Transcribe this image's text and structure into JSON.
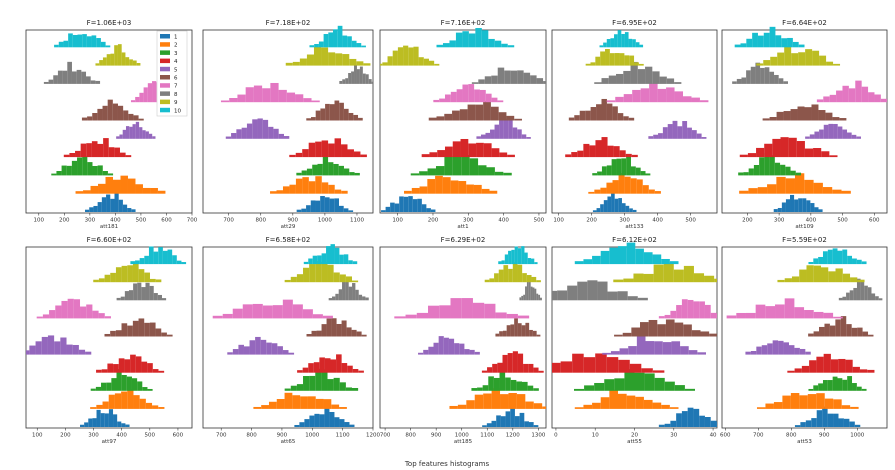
{
  "figure": {
    "suptitle": "Top features histograms",
    "legend": {
      "placement": "inside top-right of first panel",
      "entries": [
        "1",
        "2",
        "3",
        "4",
        "5",
        "6",
        "7",
        "8",
        "9",
        "10"
      ]
    },
    "class_colors": [
      "#1f77b4",
      "#ff7f0e",
      "#2ca02c",
      "#d62728",
      "#9467bd",
      "#8c564b",
      "#e377c2",
      "#7f7f7f",
      "#bcbd22",
      "#17becf"
    ]
  },
  "chart_data": [
    {
      "type": "histogram",
      "title": "F=1.06E+03",
      "xlabel": "att181",
      "xlim": [
        50,
        700
      ],
      "ticks": [
        100,
        200,
        300,
        400,
        500,
        600,
        700
      ],
      "class_centers": [
        380,
        420,
        270,
        330,
        480,
        390,
        560,
        230,
        410,
        270
      ],
      "class_spreads": [
        45,
        80,
        55,
        60,
        35,
        55,
        45,
        50,
        40,
        50
      ]
    },
    {
      "type": "histogram",
      "title": "F=7.18E+02",
      "xlabel": "att29",
      "xlim": [
        620,
        1150
      ],
      "ticks": [
        700,
        800,
        900,
        1000,
        1100
      ],
      "class_centers": [
        1000,
        950,
        1010,
        1010,
        790,
        1030,
        830,
        1100,
        1010,
        1040
      ],
      "class_spreads": [
        40,
        55,
        45,
        55,
        45,
        40,
        70,
        25,
        60,
        40
      ]
    },
    {
      "type": "histogram",
      "title": "F=7.16E+02",
      "xlabel": "att1",
      "xlim": [
        50,
        520
      ],
      "ticks": [
        100,
        200,
        300,
        400,
        500
      ],
      "class_centers": [
        130,
        250,
        280,
        300,
        400,
        320,
        300,
        420,
        130,
        320
      ],
      "class_spreads": [
        35,
        60,
        65,
        60,
        35,
        60,
        45,
        50,
        40,
        50
      ]
    },
    {
      "type": "histogram",
      "title": "F=6.95E+02",
      "xlabel": "att133",
      "xlim": [
        80,
        580
      ],
      "ticks": [
        100,
        200,
        300,
        400,
        500
      ],
      "class_centers": [
        270,
        300,
        290,
        230,
        460,
        230,
        400,
        340,
        270,
        290
      ],
      "class_spreads": [
        30,
        50,
        40,
        50,
        40,
        45,
        70,
        60,
        40,
        30
      ]
    },
    {
      "type": "histogram",
      "title": "F=6.64E+02",
      "xlabel": "att109",
      "xlim": [
        120,
        640
      ],
      "ticks": [
        200,
        300,
        400,
        500,
        600
      ],
      "class_centers": [
        360,
        350,
        270,
        330,
        470,
        380,
        540,
        240,
        360,
        270
      ],
      "class_spreads": [
        35,
        80,
        45,
        70,
        40,
        60,
        55,
        40,
        60,
        50
      ]
    }
  ],
  "chart_data_row2": [
    {
      "type": "histogram",
      "title": "F=6.60E+02",
      "xlabel": "att97",
      "xlim": [
        60,
        650
      ],
      "ticks": [
        100,
        200,
        300,
        400,
        500,
        600
      ],
      "class_centers": [
        340,
        420,
        400,
        430,
        160,
        460,
        230,
        470,
        420,
        530
      ],
      "class_spreads": [
        40,
        60,
        50,
        55,
        60,
        55,
        60,
        40,
        55,
        45
      ]
    },
    {
      "type": "histogram",
      "title": "F=6.58E+02",
      "xlabel": "att65",
      "xlim": [
        640,
        1200
      ],
      "ticks": [
        700,
        800,
        900,
        1000,
        1100,
        1200
      ],
      "class_centers": [
        1040,
        960,
        1030,
        1060,
        830,
        1080,
        870,
        1120,
        1030,
        1060
      ],
      "class_spreads": [
        45,
        70,
        55,
        50,
        50,
        45,
        90,
        30,
        55,
        40
      ]
    },
    {
      "type": "histogram",
      "title": "F=6.29E+02",
      "xlabel": "att185",
      "xlim": [
        680,
        1330
      ],
      "ticks": [
        700,
        800,
        900,
        1000,
        1100,
        1200,
        1300
      ],
      "class_centers": [
        1190,
        1150,
        1170,
        1200,
        950,
        1220,
        1000,
        1270,
        1200,
        1220
      ],
      "class_spreads": [
        50,
        90,
        60,
        55,
        55,
        40,
        120,
        20,
        50,
        35
      ]
    },
    {
      "type": "histogram",
      "title": "F=6.12E+02",
      "xlabel": "att55",
      "xlim": [
        -1,
        41
      ],
      "ticks": [
        0,
        10,
        20,
        30,
        40
      ],
      "class_centers": [
        35,
        18,
        20,
        10,
        25,
        28,
        35,
        8,
        30,
        18
      ],
      "class_spreads": [
        4,
        6,
        7,
        8,
        6,
        6,
        4,
        7,
        7,
        6
      ]
    },
    {
      "type": "histogram",
      "title": "F=5.59E+02",
      "xlabel": "att53",
      "xlim": [
        590,
        1090
      ],
      "ticks": [
        600,
        700,
        800,
        900,
        1000
      ],
      "class_centers": [
        910,
        850,
        940,
        920,
        760,
        950,
        780,
        1010,
        890,
        940
      ],
      "class_spreads": [
        45,
        70,
        40,
        60,
        45,
        45,
        80,
        30,
        60,
        40
      ]
    }
  ]
}
